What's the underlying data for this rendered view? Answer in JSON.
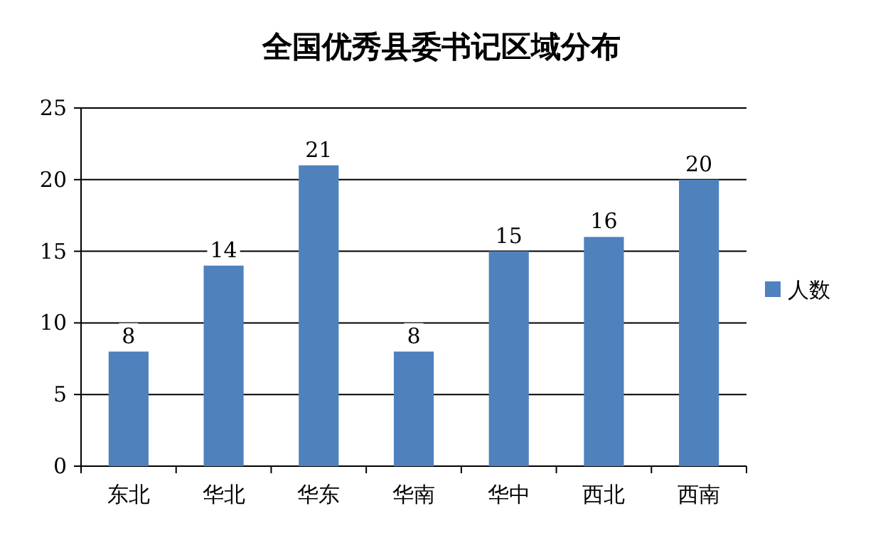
{
  "chart_data": {
    "type": "bar",
    "title": "全国优秀县委书记区域分布",
    "categories": [
      "东北",
      "华北",
      "华东",
      "华南",
      "华中",
      "西北",
      "西南"
    ],
    "series": [
      {
        "name": "人数",
        "color": "#4f81bd",
        "values": [
          8,
          14,
          21,
          8,
          15,
          16,
          20
        ]
      }
    ],
    "ylim": [
      0,
      25
    ],
    "yticks": [
      0,
      5,
      10,
      15,
      20,
      25
    ],
    "grid": "y",
    "legend": "right",
    "data_labels": true
  }
}
